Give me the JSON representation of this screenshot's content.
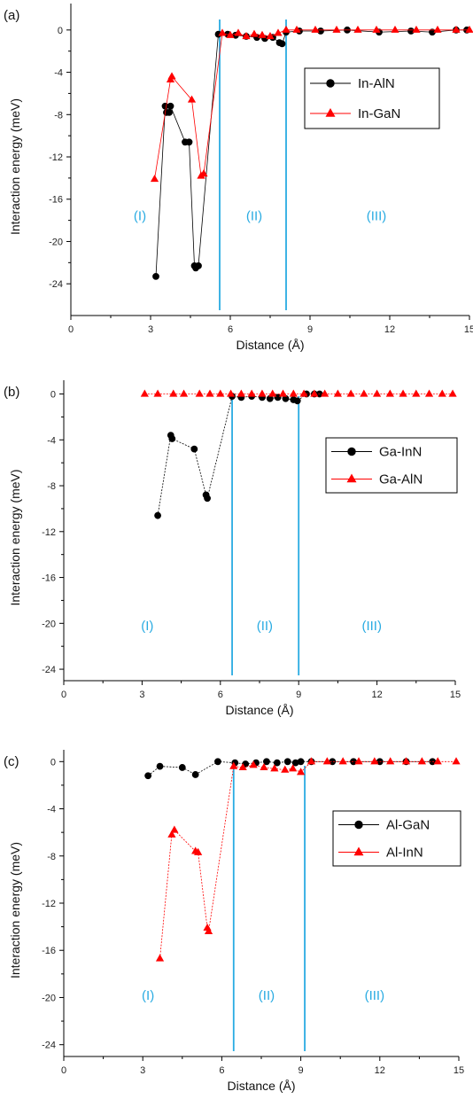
{
  "colors": {
    "black_series": "#000000",
    "red_series": "#ff0000",
    "region_line": "#29abe2",
    "region_label": "#29abe2"
  },
  "chart_data": [
    {
      "type": "scatter",
      "panel_label": "(a)",
      "xlabel": "Distance (Å)",
      "ylabel": "Interaction energy (meV)",
      "xlim": [
        0,
        15
      ],
      "ylim": [
        -27,
        2.5
      ],
      "xticks": [
        0,
        3,
        6,
        9,
        12,
        15
      ],
      "yticks": [
        0,
        -4,
        -8,
        -12,
        -16,
        -20,
        -24
      ],
      "grid": false,
      "legend_position": "upper-right",
      "region_boundaries": [
        5.6,
        8.1
      ],
      "region_labels": [
        {
          "text": "(I)",
          "x": 2.6,
          "y": -18
        },
        {
          "text": "(II)",
          "x": 6.9,
          "y": -18
        },
        {
          "text": "(III)",
          "x": 11.5,
          "y": -18
        }
      ],
      "series": [
        {
          "name": "In-AlN",
          "color": "#000000",
          "marker": "circle",
          "line": true,
          "x": [
            3.2,
            3.55,
            3.6,
            3.7,
            3.75,
            4.3,
            4.45,
            4.65,
            4.7,
            4.8,
            5.55,
            5.9,
            6.2,
            6.6,
            7.0,
            7.3,
            7.6,
            7.85,
            7.95,
            8.1,
            8.6,
            9.4,
            10.4,
            11.6,
            12.8,
            13.6,
            14.5,
            14.9
          ],
          "y": [
            -23.3,
            -7.2,
            -7.8,
            -7.8,
            -7.2,
            -10.6,
            -10.6,
            -22.3,
            -22.5,
            -22.3,
            -0.4,
            -0.4,
            -0.5,
            -0.6,
            -0.7,
            -0.8,
            -0.7,
            -1.2,
            -1.3,
            -0.2,
            -0.1,
            -0.1,
            0,
            -0.2,
            -0.1,
            -0.2,
            0,
            0
          ]
        },
        {
          "name": "In-GaN",
          "color": "#ff0000",
          "marker": "triangle",
          "line": true,
          "x": [
            3.15,
            3.75,
            3.8,
            4.55,
            4.9,
            5.0,
            5.7,
            6.0,
            6.3,
            6.6,
            6.9,
            7.2,
            7.5,
            7.8,
            8.1,
            8.5,
            9.2,
            10.0,
            10.8,
            11.5,
            12.2,
            13.0,
            13.8,
            14.5,
            15.0
          ],
          "y": [
            -14.1,
            -4.7,
            -4.4,
            -6.6,
            -13.8,
            -13.6,
            -0.3,
            -0.5,
            -0.3,
            -0.6,
            -0.4,
            -0.5,
            -0.6,
            -0.3,
            0,
            0,
            0,
            0,
            0,
            0,
            0,
            0,
            0,
            0,
            0
          ]
        }
      ]
    },
    {
      "type": "scatter",
      "panel_label": "(b)",
      "xlabel": "Distance (Å)",
      "ylabel": "Interaction energy (meV)",
      "xlim": [
        0,
        15
      ],
      "ylim": [
        -25,
        1.2
      ],
      "xticks": [
        0,
        3,
        6,
        9,
        12,
        15
      ],
      "yticks": [
        0,
        -4,
        -8,
        -12,
        -16,
        -20,
        -24
      ],
      "grid": false,
      "legend_position": "upper-right",
      "region_boundaries": [
        6.45,
        9.0
      ],
      "region_labels": [
        {
          "text": "(I)",
          "x": 3.2,
          "y": -20.6
        },
        {
          "text": "(II)",
          "x": 7.7,
          "y": -20.6
        },
        {
          "text": "(III)",
          "x": 11.8,
          "y": -20.6
        }
      ],
      "series": [
        {
          "name": "Ga-InN",
          "color": "#000000",
          "marker": "circle",
          "line": true,
          "x": [
            3.6,
            4.1,
            4.15,
            5.0,
            5.45,
            5.5,
            6.45,
            6.8,
            7.2,
            7.6,
            7.9,
            8.2,
            8.5,
            8.8,
            8.95,
            9.3,
            9.6,
            9.8
          ],
          "y": [
            -10.6,
            -3.6,
            -3.9,
            -4.8,
            -8.8,
            -9.1,
            -0.2,
            -0.3,
            -0.2,
            -0.3,
            -0.4,
            -0.3,
            -0.4,
            -0.5,
            -0.6,
            0,
            0,
            0
          ]
        },
        {
          "name": "Ga-AlN",
          "color": "#ff0000",
          "marker": "triangle",
          "line": true,
          "x": [
            3.1,
            3.6,
            4.2,
            4.6,
            5.2,
            5.6,
            6.0,
            6.4,
            6.8,
            7.2,
            7.6,
            8.0,
            8.4,
            8.8,
            9.2,
            9.6,
            10.0,
            10.5,
            11.0,
            11.5,
            12.0,
            12.5,
            13.0,
            13.5,
            14.0,
            14.5,
            14.9
          ],
          "y": [
            0,
            0,
            0,
            0,
            0,
            0,
            0,
            0,
            0,
            0,
            0,
            0,
            0,
            0,
            0,
            0,
            0,
            0,
            0,
            0,
            0,
            0,
            0,
            0,
            0,
            0,
            0
          ]
        }
      ]
    },
    {
      "type": "scatter",
      "panel_label": "(c)",
      "xlabel": "Distance (Å)",
      "ylabel": "Interaction energy (meV)",
      "xlim": [
        0,
        15
      ],
      "ylim": [
        -25,
        1
      ],
      "xticks": [
        0,
        3,
        6,
        9,
        12,
        15
      ],
      "yticks": [
        0,
        -4,
        -8,
        -12,
        -16,
        -20,
        -24
      ],
      "grid": false,
      "legend_position": "upper-right",
      "region_boundaries": [
        6.45,
        9.15
      ],
      "region_labels": [
        {
          "text": "(I)",
          "x": 3.2,
          "y": -20.2
        },
        {
          "text": "(II)",
          "x": 7.7,
          "y": -20.2
        },
        {
          "text": "(III)",
          "x": 11.8,
          "y": -20.2
        }
      ],
      "series": [
        {
          "name": "Al-GaN",
          "color": "#000000",
          "marker": "circle",
          "line": true,
          "x": [
            3.2,
            3.65,
            4.5,
            5.0,
            5.85,
            6.5,
            6.9,
            7.3,
            7.7,
            8.1,
            8.5,
            8.8,
            9.0,
            9.4,
            10.2,
            11.0,
            12.0,
            13.0,
            14.0
          ],
          "y": [
            -1.2,
            -0.4,
            -0.5,
            -1.1,
            -0.0,
            -0.1,
            -0.2,
            -0.1,
            -0.0,
            -0.1,
            -0.0,
            -0.1,
            -0.0,
            0,
            0,
            0,
            0,
            0,
            0
          ]
        },
        {
          "name": "Al-InN",
          "color": "#ff0000",
          "marker": "triangle",
          "line": true,
          "x": [
            3.65,
            4.1,
            4.2,
            5.0,
            5.1,
            5.45,
            5.5,
            6.45,
            6.8,
            7.2,
            7.6,
            8.0,
            8.4,
            8.7,
            9.0,
            9.4,
            10.0,
            10.6,
            11.2,
            11.8,
            12.4,
            13.0,
            13.6,
            14.2,
            14.9
          ],
          "y": [
            -16.7,
            -6.2,
            -5.8,
            -7.6,
            -7.7,
            -14.1,
            -14.4,
            -0.4,
            -0.5,
            -0.3,
            -0.5,
            -0.6,
            -0.7,
            -0.6,
            -0.9,
            0,
            0,
            0,
            0,
            0,
            0,
            0,
            0,
            0,
            0
          ]
        }
      ]
    }
  ]
}
